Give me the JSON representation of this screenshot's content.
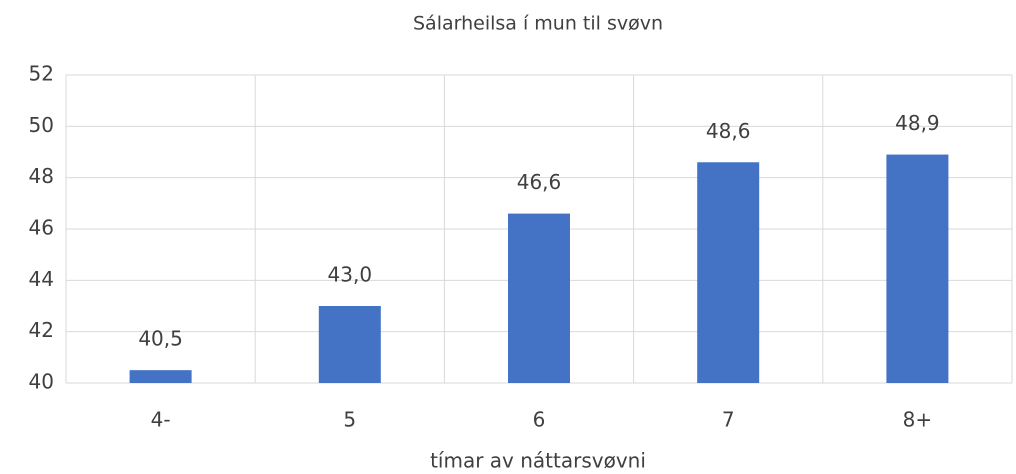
{
  "chart_data": {
    "type": "bar",
    "title": "Sálarheilsa í mun til svøvn",
    "x_label": "tímar av náttarsvøvni",
    "categories": [
      "4-",
      "5",
      "6",
      "7",
      "8+"
    ],
    "values": [
      40.5,
      43.0,
      46.6,
      48.6,
      48.9
    ],
    "value_labels": [
      "40,5",
      "43,0",
      "46,6",
      "48,6",
      "48,9"
    ],
    "color": "#4472c4",
    "ylim": [
      40,
      52
    ],
    "yticks": [
      40,
      42,
      44,
      46,
      48,
      50,
      52
    ],
    "grid": true
  }
}
